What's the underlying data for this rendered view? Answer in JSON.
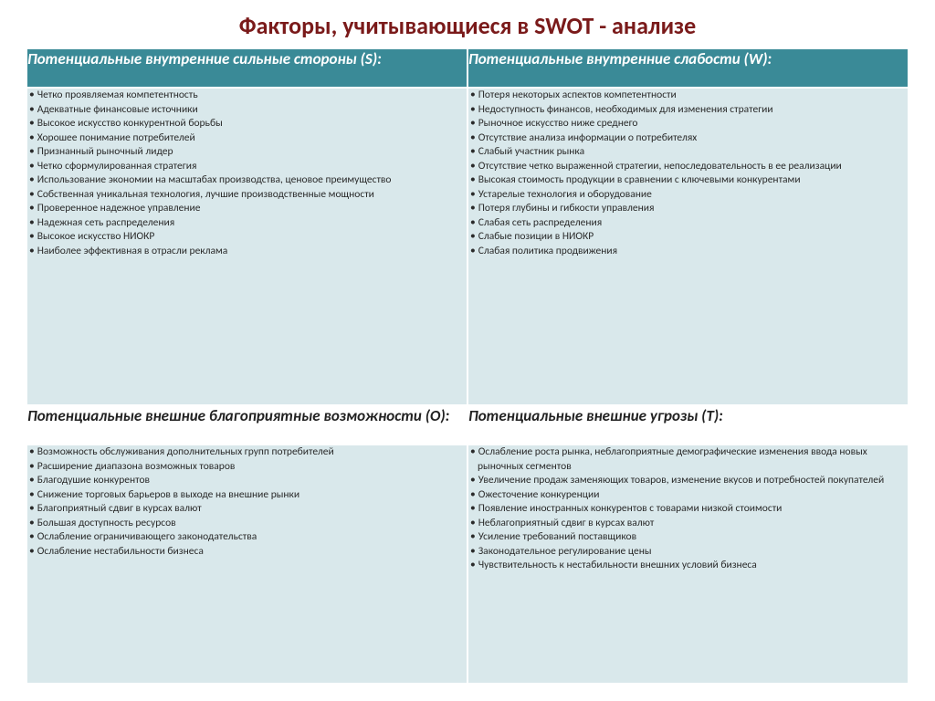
{
  "title": "Факторы, учитывающиеся в SWOT - анализе",
  "colors": {
    "title": "#7a1a1a",
    "header_bg": "#3a8a97",
    "header_text": "#ffffff",
    "cell_bg": "#d9e8eb",
    "cell_text": "#2a2a2a"
  },
  "quadrants": {
    "s": {
      "header": "Потенциальные внутренние сильные  стороны (S):",
      "items": [
        "Четко проявляемая компетентность",
        "Адекватные финансовые источники",
        "Высокое искусство конкурентной борьбы",
        "Хорошее понимание потребителей",
        "Признанный рыночный лидер",
        "Четко сформулированная стратегия",
        "Использование экономии на масштабах производства, ценовое преимущество",
        "Собственная уникальная технология, лучшие производственные мощности",
        "Проверенное надежное управление",
        "Надежная сеть распределения",
        "Высокое искусство НИОКР",
        "Наиболее эффективная в отрасли реклама"
      ]
    },
    "w": {
      "header": "Потенциальные внутренние слабости (W):",
      "items": [
        "Потеря некоторых аспектов компетентности",
        "Недоступность финансов, необходимых для изменения стратегии",
        "Рыночное искусство ниже среднего",
        "Отсутствие анализа информации о потребителях",
        "Слабый участник рынка",
        "Отсутствие четко выраженной стратегии, непоследовательность в ее реализации",
        "Высокая стоимость продукции в сравнении с ключевыми конкурентами",
        "Устарелые технология и оборудование",
        "Потеря глубины и гибкости управления",
        "Слабая сеть распределения",
        "Слабые позиции в НИОКР",
        "Слабая политика продвижения"
      ]
    },
    "o": {
      "header": "Потенциальные внешние благоприятные возможности (О):",
      "items": [
        "Возможность обслуживания дополнительных групп потребителей",
        "Расширение диапазона возможных товаров",
        "Благодушие конкурентов",
        "Снижение торговых барьеров в выходе на внешние рынки",
        "Благоприятный сдвиг в курсах валют",
        "Большая доступность ресурсов",
        "Ослабление ограничивающего законодательства",
        "Ослабление нестабильности бизнеса"
      ]
    },
    "t": {
      "header": "Потенциальные внешние угрозы (Т):",
      "items": [
        "Ослабление роста рынка, неблагоприятные демографические изменения ввода новых рыночных сегментов",
        "Увеличение продаж заменяющих товаров, изменение вкусов и потребностей покупателей",
        "Ожесточение конкуренции",
        "Появление иностранных конкурентов с товарами низкой стоимости",
        "Неблагоприятный сдвиг в курсах валют",
        "Усиление требований поставщиков",
        "Законодательное регулирование цены",
        "Чувствительность к нестабильности внешних условий бизнеса"
      ]
    }
  }
}
